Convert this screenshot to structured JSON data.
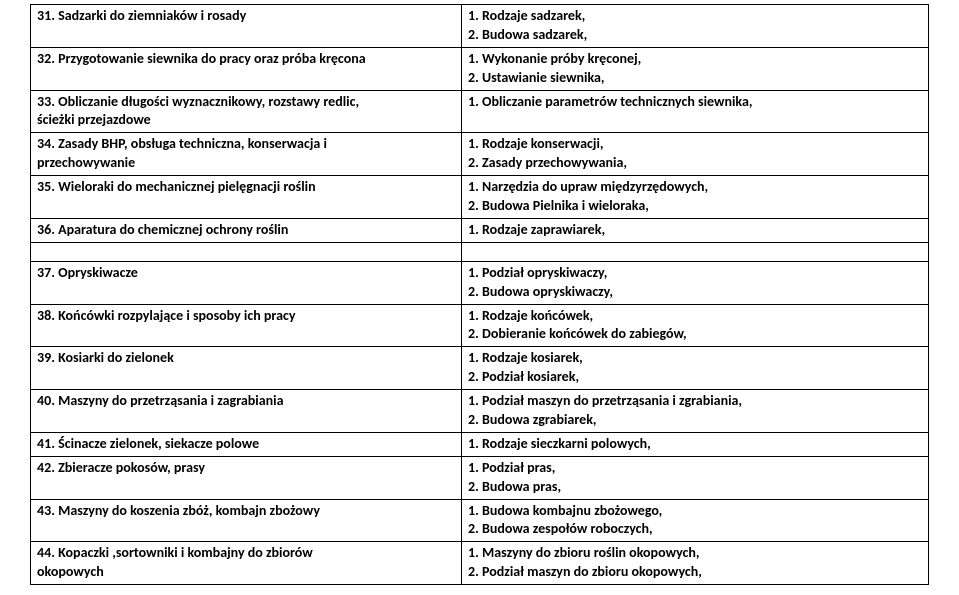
{
  "table": {
    "rows": [
      {
        "left": [
          "31. Sadzarki do ziemniaków i rosady"
        ],
        "right": [
          "1. Rodzaje sadzarek,",
          "2. Budowa sadzarek,"
        ]
      },
      {
        "left": [
          "32. Przygotowanie siewnika do pracy oraz próba kręcona"
        ],
        "right": [
          "1. Wykonanie próby kręconej,",
          "2. Ustawianie siewnika,"
        ]
      },
      {
        "left": [
          "33. Obliczanie długości wyznacznikowy, rozstawy redlic,",
          "ścieżki przejazdowe"
        ],
        "right": [
          "1. Obliczanie parametrów technicznych siewnika,"
        ]
      },
      {
        "left": [
          "34. Zasady BHP, obsługa techniczna, konserwacja i",
          "przechowywanie"
        ],
        "right": [
          "1. Rodzaje konserwacji,",
          "2. Zasady przechowywania,"
        ]
      },
      {
        "left": [
          "35. Wieloraki do mechanicznej pielęgnacji roślin"
        ],
        "right": [
          "1. Narzędzia do upraw międzyrzędowych,",
          "2. Budowa Pielnika i wieloraka,"
        ]
      },
      {
        "left": [
          "36. Aparatura do chemicznej ochrony roślin"
        ],
        "right": [
          "1. Rodzaje zaprawiarek,"
        ]
      }
    ],
    "rows2": [
      {
        "left": [
          "37. Opryskiwacze"
        ],
        "right": [
          "1. Podział opryskiwaczy,",
          "2. Budowa opryskiwaczy,"
        ]
      },
      {
        "left": [
          "38. Końcówki rozpylające i sposoby ich pracy"
        ],
        "right": [
          "1. Rodzaje końcówek,",
          "2. Dobieranie końcówek do zabiegów,"
        ]
      },
      {
        "left": [
          "39. Kosiarki do zielonek"
        ],
        "right": [
          "1. Rodzaje kosiarek,",
          "2. Podział kosiarek,"
        ]
      },
      {
        "left": [
          "40. Maszyny do przetrząsania i zagrabiania"
        ],
        "right": [
          "1. Podział maszyn do przetrząsania i zgrabiania,",
          "2. Budowa zgrabiarek,"
        ]
      },
      {
        "left": [
          "41. Ścinacze zielonek, siekacze polowe"
        ],
        "right": [
          "1. Rodzaje sieczkarni polowych,"
        ]
      },
      {
        "left": [
          "42. Zbieracze pokosów, prasy"
        ],
        "right": [
          "1. Podział pras,",
          "2. Budowa pras,"
        ]
      },
      {
        "left": [
          "43. Maszyny do koszenia zbóż, kombajn zbożowy"
        ],
        "right": [
          "1. Budowa kombajnu zbożowego,",
          "2. Budowa zespołów roboczych,"
        ]
      },
      {
        "left": [
          "44.  Kopaczki ,sortowniki i kombajny do zbiorów",
          "okopowych"
        ],
        "right": [
          "1. Maszyny do zbioru roślin okopowych,",
          "2. Podział maszyn do zbioru okopowych,"
        ]
      }
    ]
  }
}
